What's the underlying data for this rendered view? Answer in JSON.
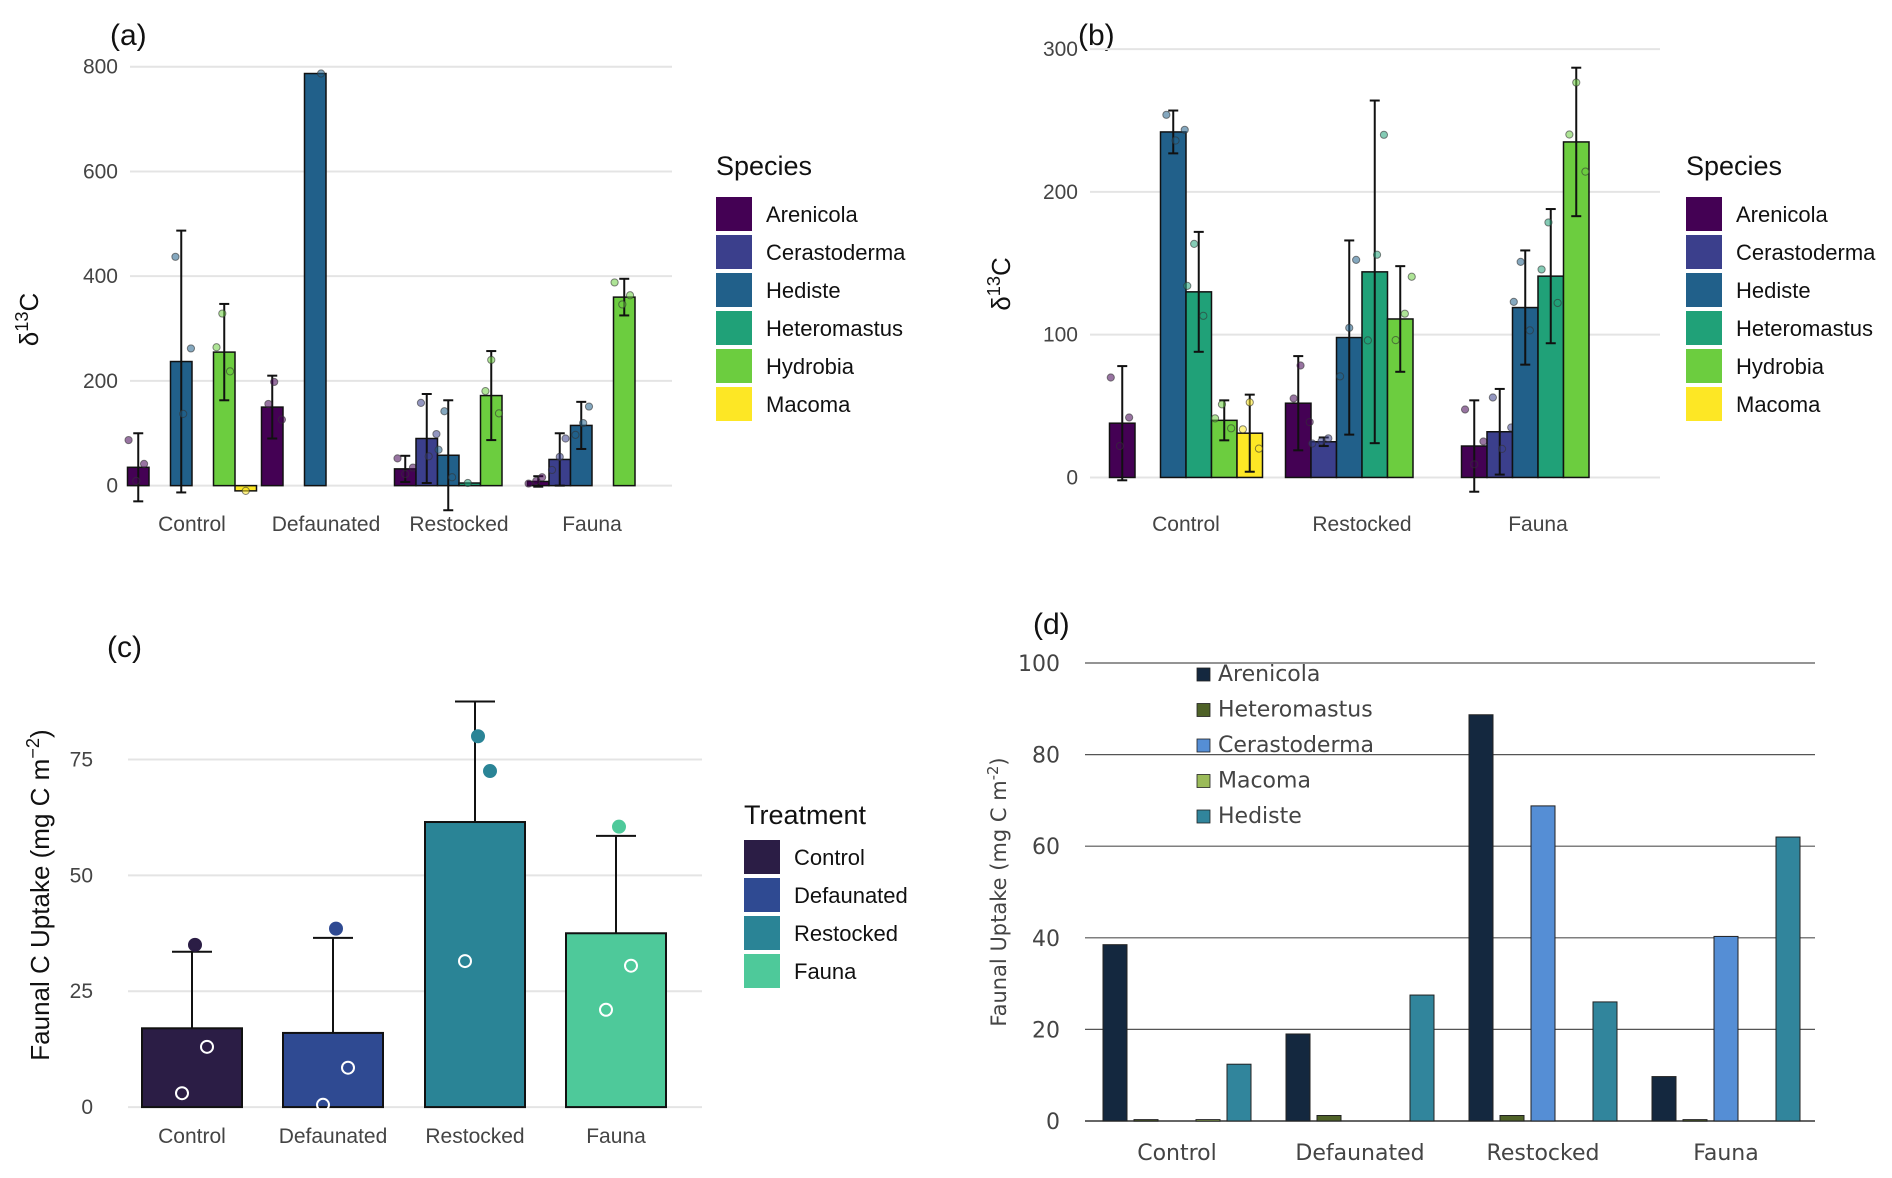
{
  "chart_data": [
    {
      "panel": "(a)",
      "type": "bar",
      "ylabel_base": "δ",
      "ylabel_sup": "13",
      "ylabel_tail": "C",
      "ylim": [
        -100,
        830
      ],
      "yticks": [
        0,
        200,
        400,
        600,
        800
      ],
      "categories": [
        "Control",
        "Defaunated",
        "Restocked",
        "Fauna"
      ],
      "legend_title": "Species",
      "series": [
        {
          "name": "Arenicola",
          "color": "#440154",
          "values": [
            35,
            150,
            32,
            8
          ],
          "err": [
            65,
            60,
            25,
            10
          ]
        },
        {
          "name": "Cerastoderma",
          "color": "#3b3f8c",
          "values": [
            0,
            0,
            90,
            50
          ],
          "err": [
            0,
            0,
            85,
            50
          ]
        },
        {
          "name": "Hediste",
          "color": "#21608a",
          "values": [
            237,
            787,
            58,
            115
          ],
          "err": [
            250,
            0,
            105,
            45
          ]
        },
        {
          "name": "Heteromastus",
          "color": "#20a178",
          "values": [
            0,
            0,
            5,
            0
          ],
          "err": [
            0,
            0,
            0,
            0
          ]
        },
        {
          "name": "Hydrobia",
          "color": "#6ccd3f",
          "values": [
            255,
            0,
            172,
            360
          ],
          "err": [
            92,
            0,
            85,
            35
          ]
        },
        {
          "name": "Macoma",
          "color": "#fde725",
          "values": [
            -10,
            0,
            0,
            0
          ],
          "err": [
            0,
            0,
            0,
            0
          ]
        }
      ]
    },
    {
      "panel": "(b)",
      "type": "bar",
      "ylabel_base": "δ",
      "ylabel_sup": "13",
      "ylabel_tail": "C",
      "ylim": [
        -20,
        305
      ],
      "yticks": [
        0,
        100,
        200,
        300
      ],
      "categories": [
        "Control",
        "Restocked",
        "Fauna"
      ],
      "legend_title": "Species",
      "series": [
        {
          "name": "Arenicola",
          "color": "#440154",
          "values": [
            38,
            52,
            22
          ],
          "err": [
            40,
            33,
            32
          ]
        },
        {
          "name": "Cerastoderma",
          "color": "#3b3f8c",
          "values": [
            0,
            25,
            32
          ],
          "err": [
            0,
            3,
            30
          ]
        },
        {
          "name": "Hediste",
          "color": "#21608a",
          "values": [
            242,
            98,
            119
          ],
          "err": [
            15,
            68,
            40
          ]
        },
        {
          "name": "Heteromastus",
          "color": "#20a178",
          "values": [
            130,
            144,
            141
          ],
          "err": [
            42,
            120,
            47
          ]
        },
        {
          "name": "Hydrobia",
          "color": "#6ccd3f",
          "values": [
            40,
            111,
            235
          ],
          "err": [
            14,
            37,
            52
          ]
        },
        {
          "name": "Macoma",
          "color": "#fde725",
          "values": [
            31,
            0,
            0
          ],
          "err": [
            27,
            0,
            0
          ]
        }
      ]
    },
    {
      "panel": "(c)",
      "type": "bar",
      "ylabel_base": "Faunal C Uptake (mg C m",
      "ylabel_sup": "−2",
      "ylabel_tail": ")",
      "ylim": [
        -3,
        93
      ],
      "yticks": [
        0,
        25,
        50,
        75
      ],
      "categories": [
        "Control",
        "Defaunated",
        "Restocked",
        "Fauna"
      ],
      "legend_title": "Treatment",
      "series": [
        {
          "name": "Control",
          "color": "#2b1d45"
        },
        {
          "name": "Defaunated",
          "color": "#2f4a92"
        },
        {
          "name": "Restocked",
          "color": "#2a8496"
        },
        {
          "name": "Fauna",
          "color": "#4ec99a"
        }
      ],
      "values": [
        17,
        16,
        61.5,
        37.5
      ],
      "err": [
        16.5,
        20.5,
        26,
        21
      ],
      "points": [
        [
          35,
          13,
          3
        ],
        [
          38.5,
          8.5,
          0.5
        ],
        [
          80,
          72.5,
          31.5
        ],
        [
          60.5,
          30.5,
          21
        ]
      ]
    },
    {
      "panel": "(d)",
      "type": "bar",
      "ylabel": "Faunal Uptake (mg C m",
      "ylabel_sup": "-2",
      "ylabel_tail": ")",
      "ylim": [
        0,
        100
      ],
      "yticks": [
        0,
        20,
        40,
        60,
        80,
        100
      ],
      "categories": [
        "Control",
        "Defaunated",
        "Restocked",
        "Fauna"
      ],
      "series": [
        {
          "name": "Arenicola",
          "color": "#14283f",
          "values": [
            38.5,
            19,
            88.7,
            9.7
          ]
        },
        {
          "name": "Heteromastus",
          "color": "#4f6228",
          "values": [
            0.3,
            1.2,
            1.2,
            0.3
          ]
        },
        {
          "name": "Cerastoderma",
          "color": "#558ed5",
          "values": [
            0,
            0,
            68.8,
            40.3
          ]
        },
        {
          "name": "Macoma",
          "color": "#9bbb59",
          "values": [
            0.3,
            0,
            0,
            0
          ]
        },
        {
          "name": "Hediste",
          "color": "#31859c",
          "values": [
            12.4,
            27.5,
            26,
            62
          ]
        }
      ]
    }
  ]
}
